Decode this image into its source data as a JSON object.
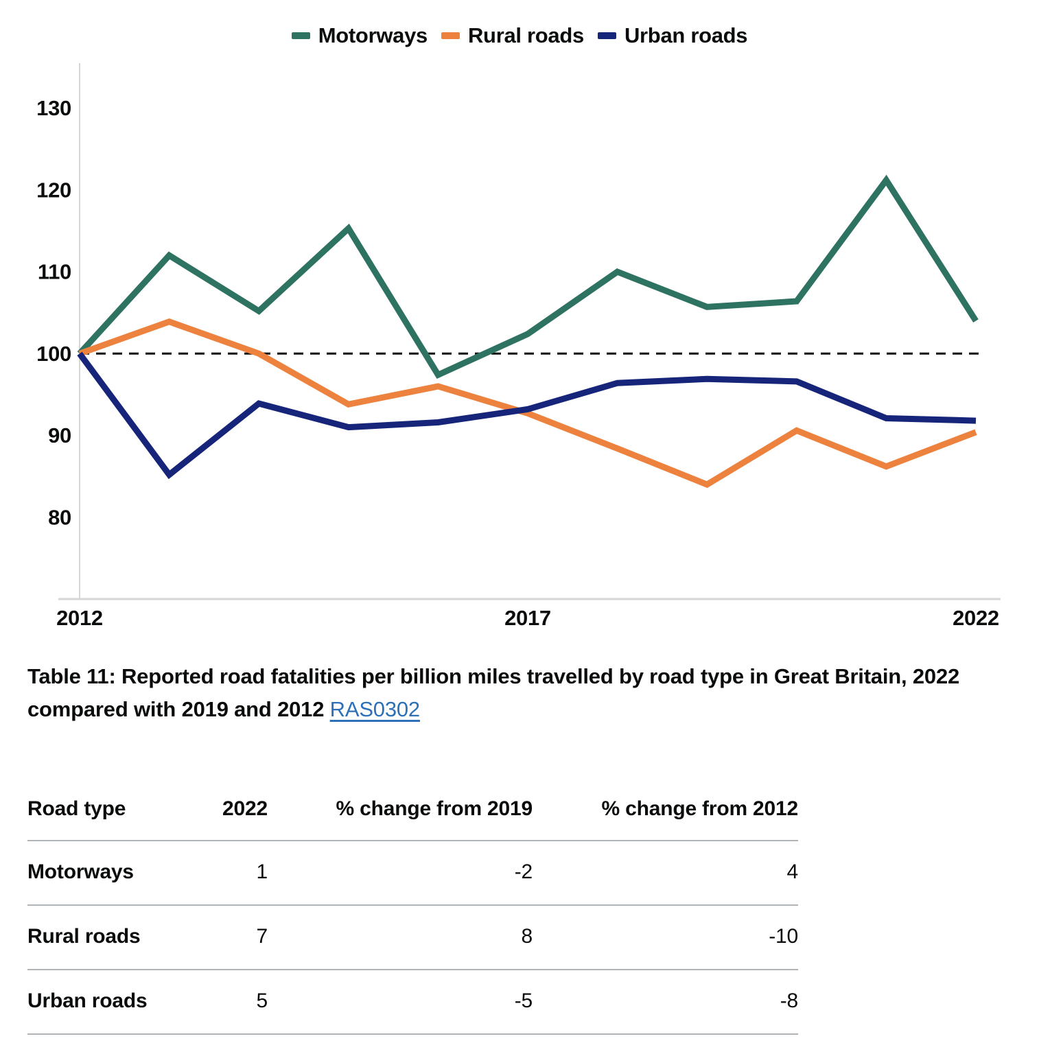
{
  "chart_data": {
    "type": "line",
    "x": [
      2012,
      2013,
      2014,
      2015,
      2016,
      2017,
      2018,
      2019,
      2020,
      2021,
      2022
    ],
    "series": [
      {
        "name": "Motorways",
        "color": "#2e7262",
        "values": [
          100,
          112,
          105.2,
          115.3,
          97.4,
          102.4,
          110,
          105.7,
          106.4,
          121.2,
          104
        ]
      },
      {
        "name": "Rural roads",
        "color": "#ec823e",
        "values": [
          100,
          103.9,
          100,
          93.8,
          96,
          92.7,
          88.4,
          84,
          90.6,
          86.2,
          90.4
        ]
      },
      {
        "name": "Urban roads",
        "color": "#162579",
        "values": [
          100,
          85.2,
          93.9,
          91,
          91.6,
          93.2,
          96.4,
          96.9,
          96.6,
          92.1,
          91.8
        ]
      }
    ],
    "baseline": 100,
    "ylim": [
      70,
      135
    ],
    "y_ticks": [
      130,
      120,
      110,
      100,
      90,
      80
    ],
    "x_tick_years": [
      2012,
      2017,
      2022
    ],
    "x_tick_labels": [
      "2012",
      "2017",
      "2022"
    ],
    "title": "",
    "xlabel": "",
    "ylabel": "",
    "legend_position": "top-center",
    "grid": false,
    "baseline_style": "dashed",
    "axis_color": "#d6d6d6",
    "baseline_color": "#0b0c0c"
  },
  "table_section": {
    "title_text": "Table 11: Reported road fatalities per billion miles travelled by road type in Great Britain, 2022 compared with 2019 and 2012 ",
    "link_label": "RAS0302",
    "link_color": "#2c70b8",
    "table": {
      "columns": [
        "Road type",
        "2022",
        "% change from 2019",
        "% change from 2012"
      ],
      "rows": [
        {
          "label": "Motorways",
          "values": [
            "1",
            "-2",
            "4"
          ]
        },
        {
          "label": "Rural roads",
          "values": [
            "7",
            "8",
            "-10"
          ]
        },
        {
          "label": "Urban roads",
          "values": [
            "5",
            "-5",
            "-8"
          ]
        }
      ]
    }
  }
}
